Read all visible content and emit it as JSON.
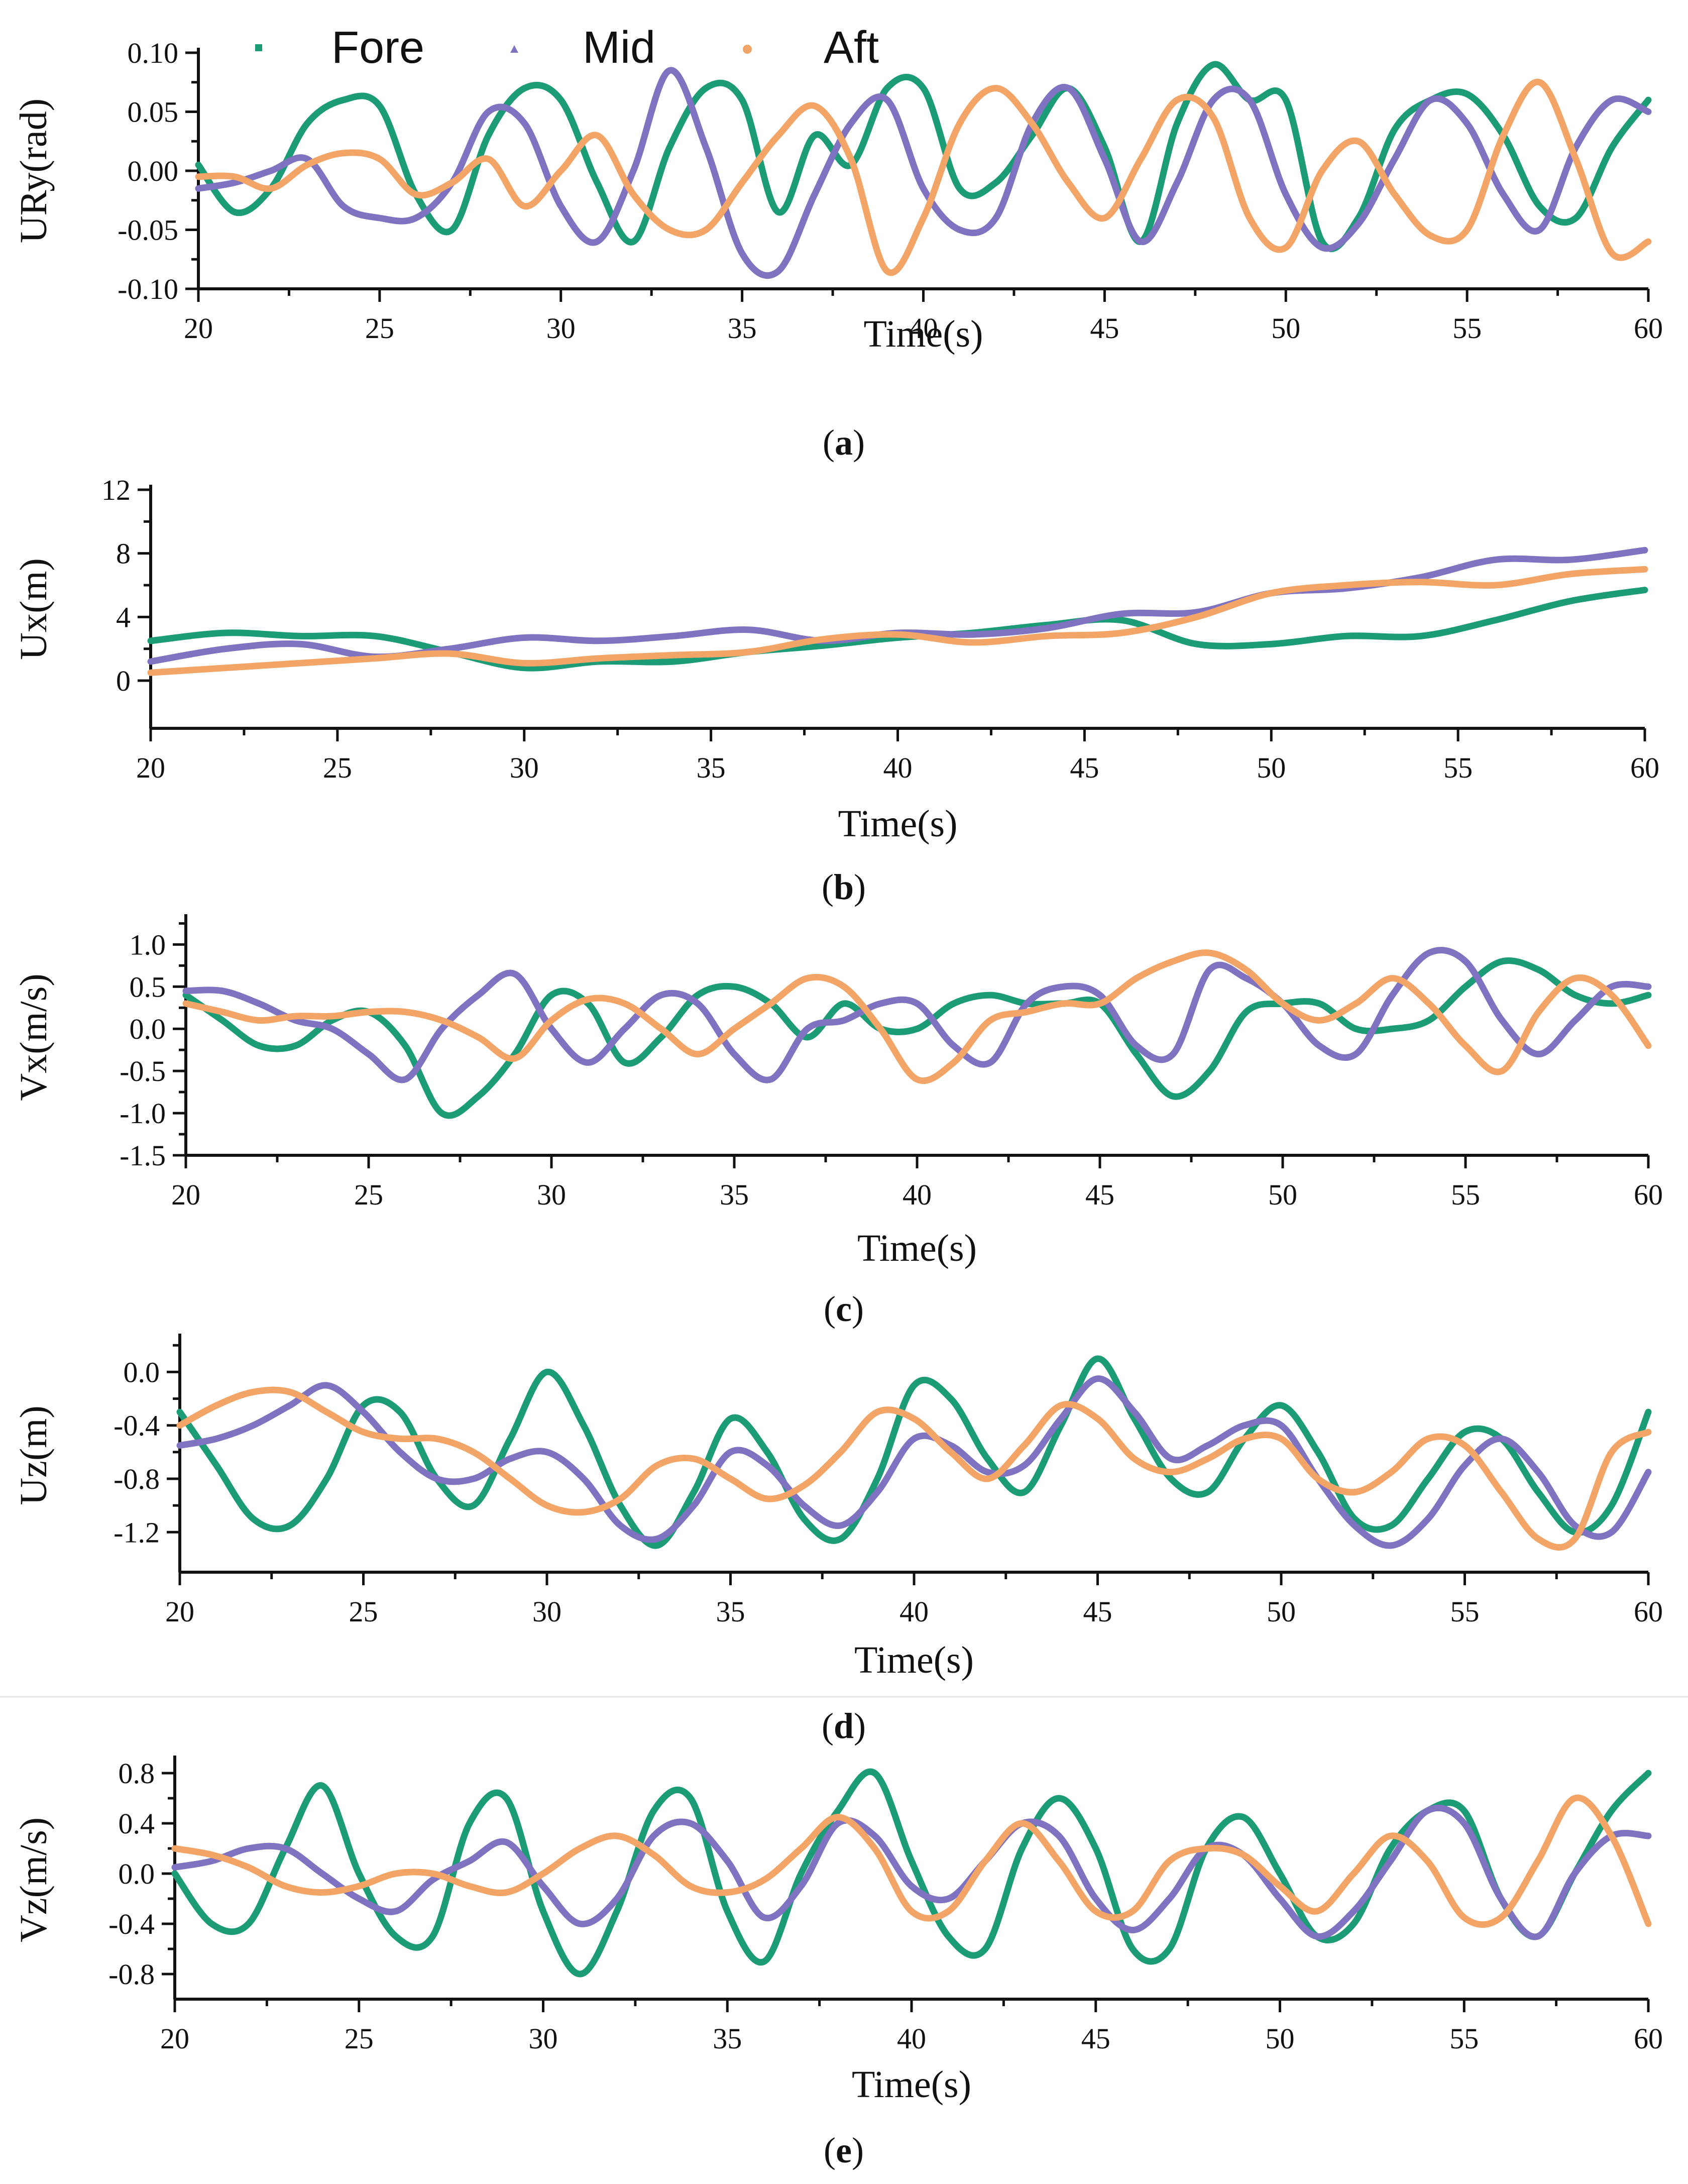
{
  "colors": {
    "fore": "#1b9b76",
    "mid": "#7f72c0",
    "aft": "#f2a566",
    "axis": "#111111"
  },
  "legend": [
    {
      "name": "Fore",
      "marker": "square",
      "color": "#1b9b76"
    },
    {
      "name": "Mid",
      "marker": "triangle",
      "color": "#7f72c0"
    },
    {
      "name": "Aft",
      "marker": "circle",
      "color": "#f2a566"
    }
  ],
  "chart_data": [
    {
      "type": "line",
      "panel": "a",
      "caption_open": "(",
      "caption_letter": "a",
      "caption_close": ")",
      "xlabel": "Time(s)",
      "ylabel": "URy(rad)",
      "xlim": [
        20,
        60
      ],
      "ylim": [
        -0.1,
        0.1
      ],
      "xticks": [
        "20",
        "25",
        "30",
        "35",
        "40",
        "45",
        "50",
        "55",
        "60"
      ],
      "yticks": [
        "-0.10",
        "-0.05",
        "0.00",
        "0.05",
        "0.10"
      ],
      "x": [
        20,
        21,
        22,
        23,
        24,
        25,
        26,
        27,
        28,
        29,
        30,
        31,
        32,
        33,
        34,
        35,
        36,
        37,
        38,
        39,
        40,
        41,
        42,
        43,
        44,
        45,
        46,
        47,
        48,
        49,
        50,
        51,
        52,
        53,
        54,
        55,
        56,
        57,
        58,
        59,
        60
      ],
      "series": [
        {
          "name": "Fore",
          "values": [
            0.005,
            -0.035,
            -0.015,
            0.04,
            0.06,
            0.055,
            -0.02,
            -0.05,
            0.03,
            0.07,
            0.06,
            -0.01,
            -0.06,
            0.02,
            0.07,
            0.06,
            -0.035,
            0.03,
            0.005,
            0.07,
            0.07,
            -0.015,
            -0.01,
            0.03,
            0.07,
            0.02,
            -0.06,
            0.04,
            0.09,
            0.06,
            0.06,
            -0.06,
            -0.04,
            0.035,
            0.06,
            0.065,
            0.03,
            -0.03,
            -0.04,
            0.02,
            0.06
          ]
        },
        {
          "name": "Mid",
          "values": [
            -0.015,
            -0.01,
            0.0,
            0.01,
            -0.03,
            -0.04,
            -0.04,
            -0.01,
            0.05,
            0.04,
            -0.03,
            -0.06,
            0.0,
            0.085,
            0.02,
            -0.07,
            -0.085,
            -0.02,
            0.04,
            0.06,
            -0.015,
            -0.05,
            -0.04,
            0.04,
            0.07,
            0.01,
            -0.06,
            -0.01,
            0.06,
            0.06,
            -0.02,
            -0.065,
            -0.045,
            0.01,
            0.06,
            0.04,
            -0.02,
            -0.05,
            0.02,
            0.06,
            0.05
          ]
        },
        {
          "name": "Aft",
          "values": [
            -0.005,
            -0.005,
            -0.015,
            0.005,
            0.015,
            0.01,
            -0.02,
            -0.01,
            0.01,
            -0.03,
            0.0,
            0.03,
            -0.02,
            -0.05,
            -0.05,
            -0.01,
            0.03,
            0.055,
            0.01,
            -0.085,
            -0.04,
            0.04,
            0.07,
            0.04,
            -0.01,
            -0.04,
            0.01,
            0.06,
            0.045,
            -0.04,
            -0.065,
            0.0,
            0.025,
            -0.02,
            -0.055,
            -0.05,
            0.03,
            0.075,
            0.01,
            -0.07,
            -0.06
          ]
        }
      ]
    },
    {
      "type": "line",
      "panel": "b",
      "caption_open": "(",
      "caption_letter": "b",
      "caption_close": ")",
      "xlabel": "Time(s)",
      "ylabel": "Ux(m)",
      "xlim": [
        20,
        60
      ],
      "ylim": [
        -3,
        12
      ],
      "xticks": [
        "20",
        "25",
        "30",
        "35",
        "40",
        "45",
        "50",
        "55",
        "60"
      ],
      "yticks": [
        "0",
        "4",
        "8",
        "12"
      ],
      "x": [
        20,
        22,
        24,
        26,
        28,
        30,
        32,
        34,
        36,
        38,
        40,
        42,
        44,
        46,
        48,
        50,
        52,
        54,
        56,
        58,
        60
      ],
      "series": [
        {
          "name": "Fore",
          "values": [
            2.5,
            3.0,
            2.8,
            2.8,
            1.8,
            0.8,
            1.2,
            1.2,
            1.8,
            2.2,
            2.7,
            3.0,
            3.5,
            3.8,
            2.3,
            2.3,
            2.8,
            2.8,
            3.8,
            5.0,
            5.7
          ]
        },
        {
          "name": "Mid",
          "values": [
            1.2,
            2.0,
            2.3,
            1.5,
            2.0,
            2.7,
            2.5,
            2.8,
            3.2,
            2.5,
            3.0,
            2.9,
            3.3,
            4.2,
            4.3,
            5.5,
            5.8,
            6.5,
            7.6,
            7.6,
            8.2
          ]
        },
        {
          "name": "Aft",
          "values": [
            0.5,
            0.8,
            1.1,
            1.4,
            1.7,
            1.1,
            1.4,
            1.6,
            1.8,
            2.6,
            2.9,
            2.4,
            2.8,
            3.0,
            4.0,
            5.5,
            6.0,
            6.2,
            6.0,
            6.7,
            7.0
          ]
        }
      ]
    },
    {
      "type": "line",
      "panel": "c",
      "caption_open": "(",
      "caption_letter": "c",
      "caption_close": ")",
      "xlabel": "Time(s)",
      "ylabel": "Vx(m/s)",
      "xlim": [
        20,
        60
      ],
      "ylim": [
        -1.5,
        1.3
      ],
      "xticks": [
        "20",
        "25",
        "30",
        "35",
        "40",
        "45",
        "50",
        "55",
        "60"
      ],
      "yticks": [
        "-1.5",
        "-1.0",
        "-0.5",
        "0.0",
        "0.5",
        "1.0"
      ],
      "x": [
        20,
        21,
        22,
        23,
        24,
        25,
        26,
        27,
        28,
        29,
        30,
        31,
        32,
        33,
        34,
        35,
        36,
        37,
        38,
        39,
        40,
        41,
        42,
        43,
        44,
        45,
        46,
        47,
        48,
        49,
        50,
        51,
        52,
        53,
        54,
        55,
        56,
        57,
        58,
        59,
        60
      ],
      "series": [
        {
          "name": "Fore",
          "values": [
            0.4,
            0.1,
            -0.2,
            -0.2,
            0.1,
            0.2,
            -0.2,
            -1.0,
            -0.8,
            -0.3,
            0.4,
            0.3,
            -0.4,
            -0.1,
            0.4,
            0.5,
            0.3,
            -0.1,
            0.3,
            0.0,
            0.0,
            0.3,
            0.4,
            0.3,
            0.3,
            0.3,
            -0.3,
            -0.8,
            -0.5,
            0.2,
            0.3,
            0.3,
            0.0,
            0.0,
            0.1,
            0.5,
            0.8,
            0.7,
            0.4,
            0.3,
            0.4
          ]
        },
        {
          "name": "Mid",
          "values": [
            0.45,
            0.45,
            0.3,
            0.1,
            0.0,
            -0.3,
            -0.6,
            0.0,
            0.4,
            0.65,
            0.0,
            -0.4,
            0.0,
            0.4,
            0.3,
            -0.3,
            -0.6,
            0.0,
            0.1,
            0.3,
            0.3,
            -0.2,
            -0.4,
            0.3,
            0.5,
            0.4,
            -0.2,
            -0.3,
            0.7,
            0.6,
            0.3,
            -0.2,
            -0.3,
            0.4,
            0.9,
            0.8,
            0.1,
            -0.3,
            0.1,
            0.5,
            0.5
          ]
        },
        {
          "name": "Aft",
          "values": [
            0.3,
            0.2,
            0.1,
            0.15,
            0.15,
            0.2,
            0.2,
            0.1,
            -0.1,
            -0.35,
            0.1,
            0.35,
            0.3,
            0.0,
            -0.3,
            0.0,
            0.3,
            0.6,
            0.5,
            0.0,
            -0.6,
            -0.4,
            0.1,
            0.2,
            0.3,
            0.3,
            0.6,
            0.8,
            0.9,
            0.7,
            0.3,
            0.1,
            0.3,
            0.6,
            0.3,
            -0.2,
            -0.5,
            0.2,
            0.6,
            0.4,
            -0.2
          ]
        }
      ]
    },
    {
      "type": "line",
      "panel": "d",
      "caption_open": "(",
      "caption_letter": "d",
      "caption_close": ")",
      "xlabel": "Time(s)",
      "ylabel": "Uz(m)",
      "xlim": [
        20,
        60
      ],
      "ylim": [
        -1.5,
        0.25
      ],
      "xticks": [
        "20",
        "25",
        "30",
        "35",
        "40",
        "45",
        "50",
        "55",
        "60"
      ],
      "yticks": [
        "-1.2",
        "-0.8",
        "-0.4",
        "0.0"
      ],
      "x": [
        20,
        21,
        22,
        23,
        24,
        25,
        26,
        27,
        28,
        29,
        30,
        31,
        32,
        33,
        34,
        35,
        36,
        37,
        38,
        39,
        40,
        41,
        42,
        43,
        44,
        45,
        46,
        47,
        48,
        49,
        50,
        51,
        52,
        53,
        54,
        55,
        56,
        57,
        58,
        59,
        60
      ],
      "series": [
        {
          "name": "Fore",
          "values": [
            -0.3,
            -0.7,
            -1.1,
            -1.15,
            -0.8,
            -0.25,
            -0.3,
            -0.8,
            -1.0,
            -0.5,
            0.0,
            -0.4,
            -1.0,
            -1.3,
            -0.9,
            -0.35,
            -0.6,
            -1.1,
            -1.25,
            -0.8,
            -0.1,
            -0.2,
            -0.65,
            -0.9,
            -0.4,
            0.1,
            -0.35,
            -0.8,
            -0.9,
            -0.5,
            -0.25,
            -0.6,
            -1.1,
            -1.15,
            -0.8,
            -0.45,
            -0.5,
            -0.9,
            -1.2,
            -1.0,
            -0.3
          ]
        },
        {
          "name": "Mid",
          "values": [
            -0.55,
            -0.5,
            -0.4,
            -0.25,
            -0.1,
            -0.3,
            -0.6,
            -0.8,
            -0.8,
            -0.65,
            -0.6,
            -0.8,
            -1.15,
            -1.25,
            -1.0,
            -0.6,
            -0.7,
            -1.0,
            -1.15,
            -0.9,
            -0.5,
            -0.55,
            -0.75,
            -0.7,
            -0.35,
            -0.05,
            -0.3,
            -0.65,
            -0.55,
            -0.4,
            -0.4,
            -0.8,
            -1.15,
            -1.3,
            -1.1,
            -0.7,
            -0.5,
            -0.75,
            -1.15,
            -1.2,
            -0.75
          ]
        },
        {
          "name": "Aft",
          "values": [
            -0.4,
            -0.25,
            -0.15,
            -0.15,
            -0.3,
            -0.45,
            -0.5,
            -0.5,
            -0.6,
            -0.8,
            -1.0,
            -1.05,
            -0.95,
            -0.7,
            -0.65,
            -0.8,
            -0.95,
            -0.85,
            -0.6,
            -0.3,
            -0.35,
            -0.6,
            -0.8,
            -0.55,
            -0.25,
            -0.35,
            -0.65,
            -0.75,
            -0.65,
            -0.5,
            -0.5,
            -0.8,
            -0.9,
            -0.75,
            -0.5,
            -0.55,
            -0.9,
            -1.25,
            -1.25,
            -0.6,
            -0.45
          ]
        }
      ]
    },
    {
      "type": "line",
      "panel": "e",
      "caption_open": "(",
      "caption_letter": "e",
      "caption_close": ")",
      "xlabel": "Time(s)",
      "ylabel": "Vz(m/s)",
      "xlim": [
        20,
        60
      ],
      "ylim": [
        -1.0,
        0.9
      ],
      "xticks": [
        "20",
        "25",
        "30",
        "35",
        "40",
        "45",
        "50",
        "55",
        "60"
      ],
      "yticks": [
        "-0.8",
        "-0.4",
        "0.0",
        "0.4",
        "0.8"
      ],
      "x": [
        20,
        21,
        22,
        23,
        24,
        25,
        26,
        27,
        28,
        29,
        30,
        31,
        32,
        33,
        34,
        35,
        36,
        37,
        38,
        39,
        40,
        41,
        42,
        43,
        44,
        45,
        46,
        47,
        48,
        49,
        50,
        51,
        52,
        53,
        54,
        55,
        56,
        57,
        58,
        59,
        60
      ],
      "series": [
        {
          "name": "Fore",
          "values": [
            0.0,
            -0.4,
            -0.4,
            0.2,
            0.7,
            0.0,
            -0.5,
            -0.5,
            0.4,
            0.6,
            -0.3,
            -0.8,
            -0.3,
            0.5,
            0.6,
            -0.3,
            -0.7,
            0.0,
            0.5,
            0.8,
            0.1,
            -0.5,
            -0.6,
            0.2,
            0.6,
            0.2,
            -0.6,
            -0.6,
            0.2,
            0.45,
            0.0,
            -0.5,
            -0.4,
            0.2,
            0.5,
            0.5,
            -0.2,
            -0.5,
            0.0,
            0.5,
            0.8
          ]
        },
        {
          "name": "Mid",
          "values": [
            0.05,
            0.1,
            0.2,
            0.2,
            0.0,
            -0.2,
            -0.3,
            -0.05,
            0.1,
            0.25,
            -0.1,
            -0.4,
            -0.2,
            0.3,
            0.4,
            0.1,
            -0.35,
            -0.1,
            0.4,
            0.3,
            -0.1,
            -0.2,
            0.1,
            0.4,
            0.3,
            -0.2,
            -0.45,
            -0.2,
            0.2,
            0.15,
            -0.2,
            -0.5,
            -0.3,
            0.1,
            0.5,
            0.4,
            -0.2,
            -0.5,
            0.0,
            0.3,
            0.3
          ]
        },
        {
          "name": "Aft",
          "values": [
            0.2,
            0.15,
            0.05,
            -0.1,
            -0.15,
            -0.1,
            0.0,
            0.0,
            -0.1,
            -0.15,
            0.0,
            0.2,
            0.3,
            0.15,
            -0.1,
            -0.15,
            -0.05,
            0.2,
            0.45,
            0.2,
            -0.3,
            -0.3,
            0.1,
            0.4,
            0.1,
            -0.3,
            -0.3,
            0.1,
            0.2,
            0.15,
            -0.1,
            -0.3,
            0.0,
            0.3,
            0.1,
            -0.35,
            -0.35,
            0.1,
            0.6,
            0.3,
            -0.4
          ]
        }
      ]
    }
  ]
}
